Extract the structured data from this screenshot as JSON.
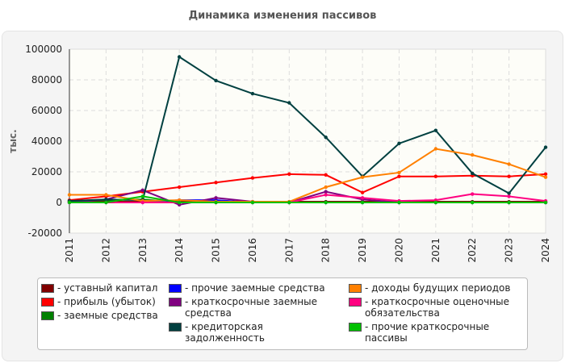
{
  "chart_data": {
    "type": "line",
    "title": "Динамика изменения пассивов",
    "ylabel": "тыс.",
    "xlabel": "",
    "ylim": [
      -20000,
      100000
    ],
    "yticks": [
      100000,
      80000,
      60000,
      40000,
      20000,
      0,
      -20000
    ],
    "grid": true,
    "legend_position": "bottom",
    "categories": [
      "2011",
      "2012",
      "2013",
      "2014",
      "2015",
      "2016",
      "2017",
      "2018",
      "2019",
      "2020",
      "2021",
      "2022",
      "2023",
      "2024"
    ],
    "series": [
      {
        "name": "- уставный капитал",
        "color": "#800000",
        "values": [
          500,
          500,
          500,
          500,
          500,
          500,
          500,
          500,
          500,
          500,
          500,
          500,
          500,
          500
        ]
      },
      {
        "name": "- прибыль (убыток)",
        "color": "#ff0000",
        "values": [
          1500,
          4000,
          7000,
          10000,
          13000,
          16000,
          18500,
          18000,
          6500,
          17000,
          17000,
          17500,
          17000,
          18500
        ]
      },
      {
        "name": "- заемные средства",
        "color": "#008000",
        "values": [
          1000,
          1500,
          2000,
          0,
          0,
          0,
          0,
          0,
          0,
          0,
          0,
          0,
          0,
          0
        ]
      },
      {
        "name": "- прочие заемные средства",
        "color": "#0000ff",
        "values": [
          0,
          0,
          0,
          1500,
          1500,
          0,
          0,
          0,
          0,
          0,
          0,
          0,
          0,
          0
        ]
      },
      {
        "name": "- краткосрочные заемные средства",
        "color": "#800080",
        "values": [
          0,
          2000,
          8000,
          -1500,
          3000,
          500,
          0,
          7000,
          2000,
          0,
          0,
          0,
          0,
          0
        ]
      },
      {
        "name": "- кредиторская задолженность",
        "color": "#004040",
        "values": [
          1000,
          2000,
          1500,
          95000,
          79500,
          71000,
          65000,
          42500,
          17000,
          38500,
          47000,
          19000,
          6000,
          36000
        ]
      },
      {
        "name": "- доходы будущих периодов",
        "color": "#ff8000",
        "values": [
          5000,
          5000,
          1000,
          1500,
          500,
          500,
          500,
          10000,
          16500,
          19500,
          35000,
          31000,
          25000,
          16500
        ]
      },
      {
        "name": "- краткосрочные оценочные обязательства",
        "color": "#ff0080",
        "values": [
          0,
          0,
          0,
          0,
          0,
          0,
          0,
          5000,
          3000,
          1000,
          1500,
          5500,
          4000,
          1000
        ]
      },
      {
        "name": "- прочие краткосрочные пассивы",
        "color": "#00c000",
        "values": [
          0,
          0,
          4000,
          0,
          0,
          0,
          0,
          0,
          0,
          0,
          0,
          0,
          0,
          0
        ]
      }
    ]
  }
}
